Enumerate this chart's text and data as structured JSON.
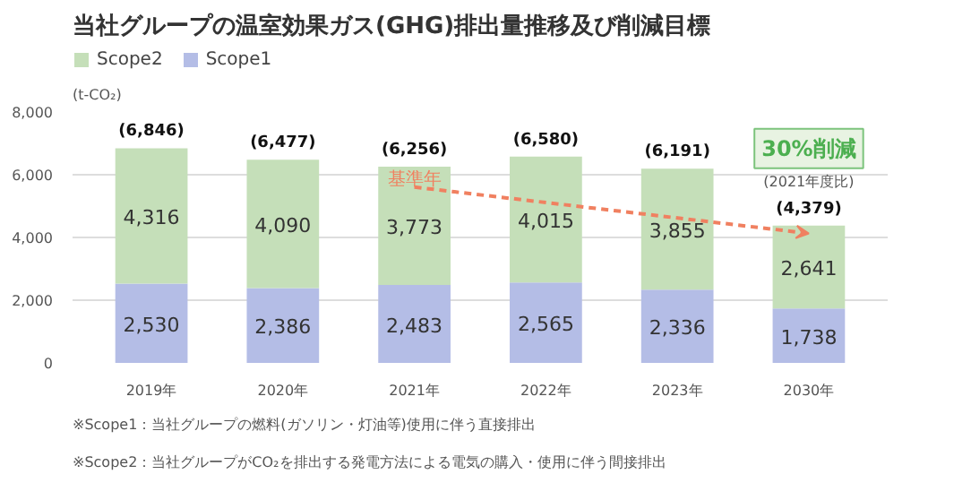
{
  "chart_data": {
    "type": "bar",
    "title": "当社グループの温室効果ガス(GHG)排出量推移及び削減目標",
    "ylabel": "(t-CO₂)",
    "categories": [
      "2019年",
      "2020年",
      "2021年",
      "2022年",
      "2023年",
      "2030年"
    ],
    "stacked": true,
    "series": [
      {
        "name": "Scope1",
        "color": "#b4bde6",
        "values": [
          2530,
          2386,
          2483,
          2565,
          2336,
          1738
        ],
        "value_labels": [
          "2,530",
          "2,386",
          "2,483",
          "2,565",
          "2,336",
          "1,738"
        ]
      },
      {
        "name": "Scope2",
        "color": "#c5dfb9",
        "values": [
          4316,
          4090,
          3773,
          4015,
          3855,
          2641
        ],
        "value_labels": [
          "4,316",
          "4,090",
          "3,773",
          "4,015",
          "3,855",
          "2,641"
        ]
      }
    ],
    "totals": [
      "(6,846)",
      "(6,477)",
      "(6,256)",
      "(6,580)",
      "(6,191)",
      "(4,379)"
    ],
    "ylim": [
      0,
      8000
    ],
    "yticks": [
      0,
      {
        "value": 2000,
        "label": "2,000"
      },
      {
        "value": 4000,
        "label": "4,000"
      },
      {
        "value": 6000,
        "label": "6,000"
      },
      {
        "value": 8000,
        "label": "8,000"
      }
    ],
    "grid": "y",
    "legend": "top left",
    "annotations": [
      {
        "text": "基準年",
        "x": "2021年",
        "y": 6256
      },
      {
        "text": "30%削減",
        "x": "2030年",
        "y": 4379
      },
      {
        "text": "(2021年度比)",
        "x": "2030年",
        "y": 4379
      },
      "※Scope1：当社グループの燃料(ガソリン・灯油等)使用に伴う直接排出",
      "※Scope2：当社グループがCO₂を排出する発電方法による電気の購入・使用に伴う間接排出"
    ]
  }
}
